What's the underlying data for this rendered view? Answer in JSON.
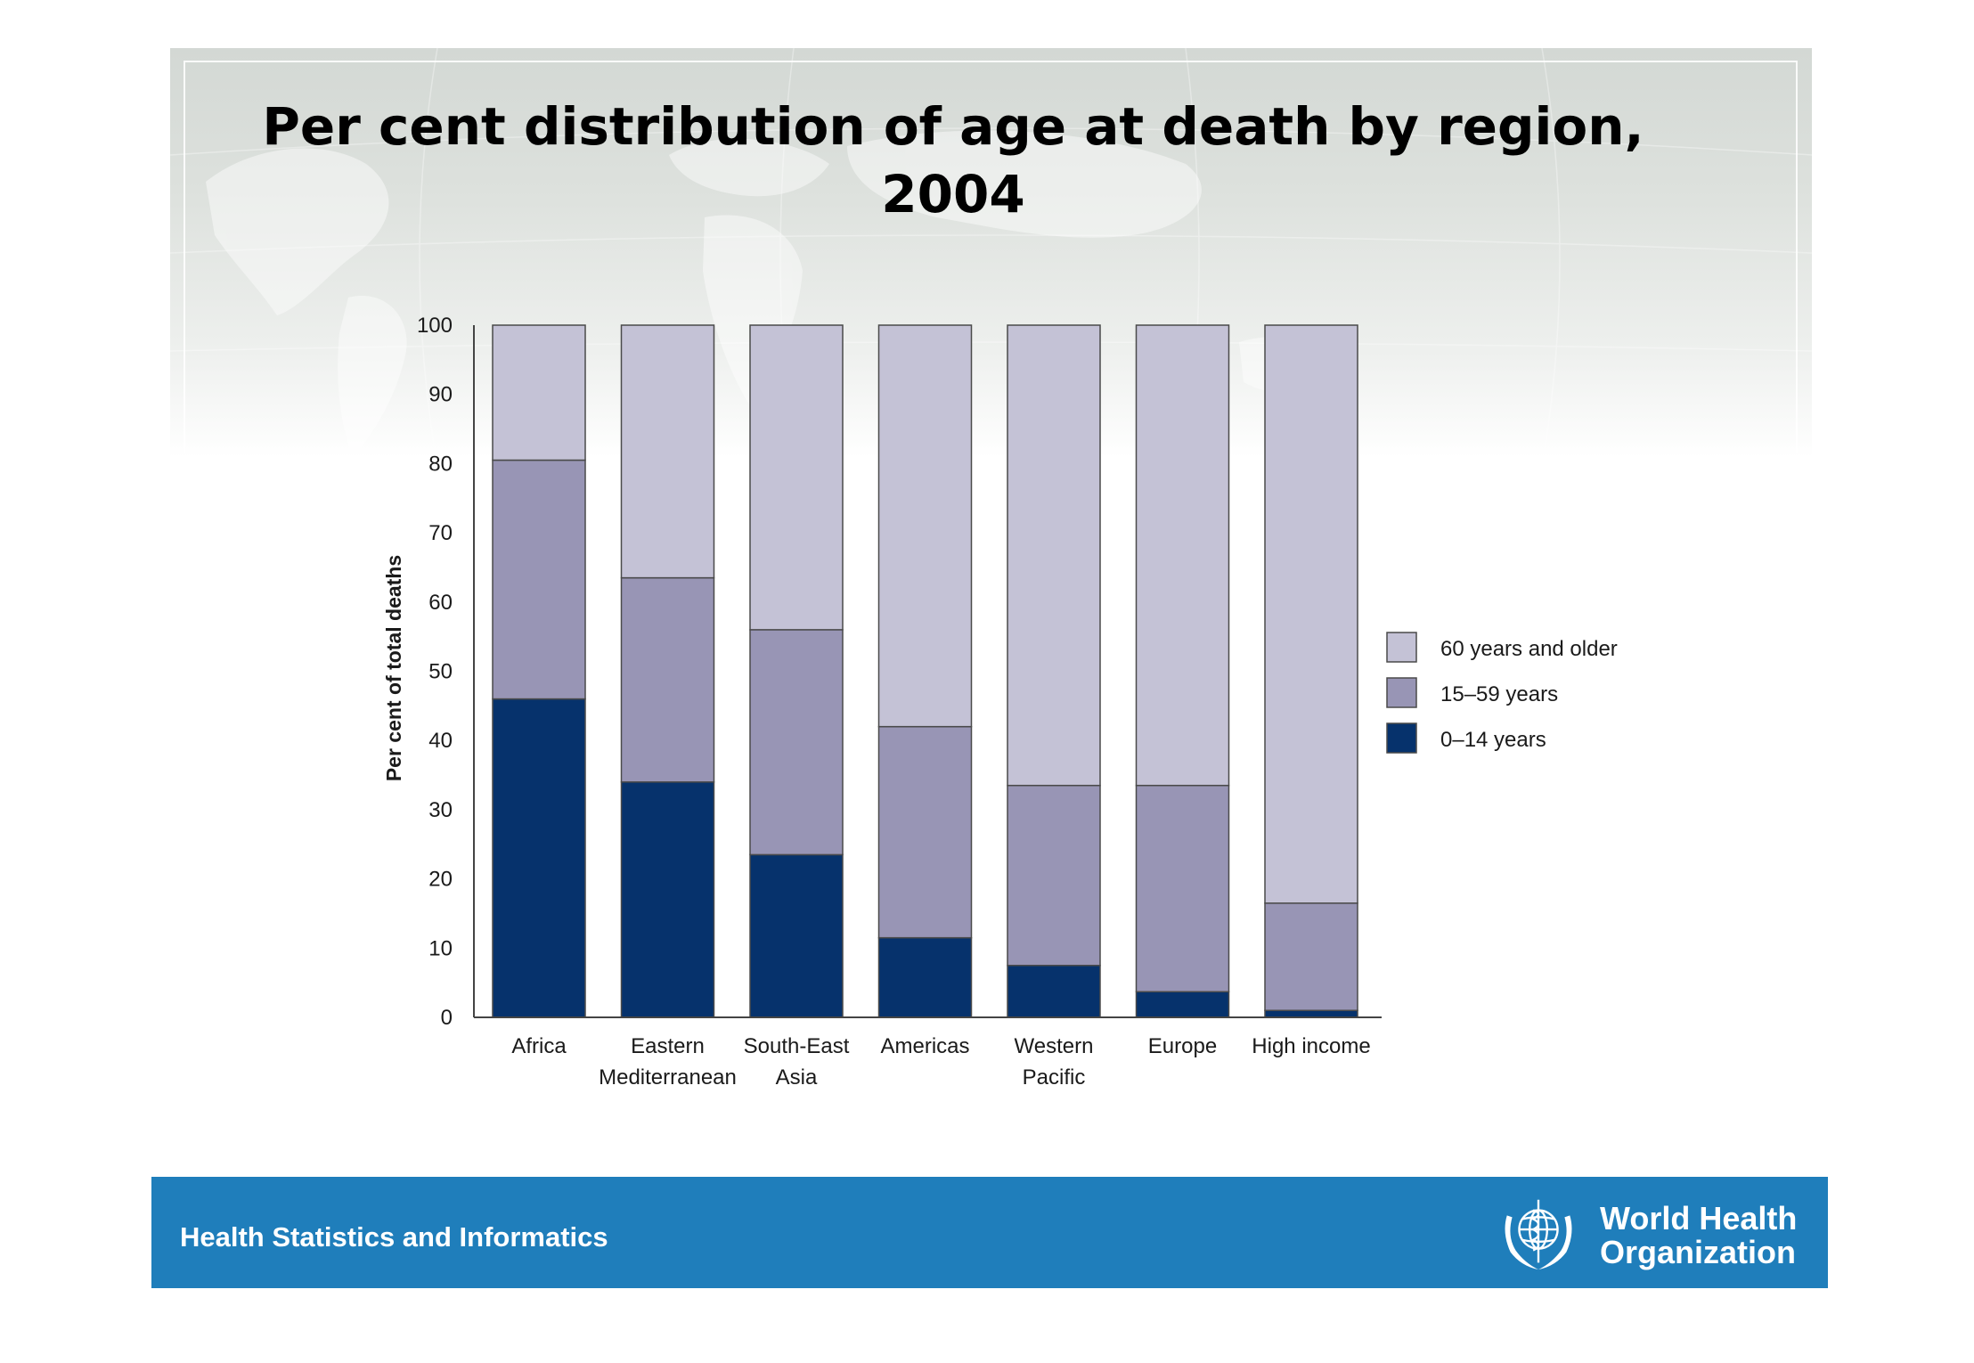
{
  "slide": {
    "title_line1": "Per cent distribution of age at death by region,",
    "title_line2": "2004"
  },
  "footer": {
    "department": "Health Statistics and Informatics",
    "org_line1": "World Health",
    "org_line2": "Organization",
    "logo_icon": "who-emblem-icon"
  },
  "colors": {
    "band": "#1f7ebb",
    "age_60_plus": "#c4c2d6",
    "age_15_59": "#9895b5",
    "age_0_14": "#06326c"
  },
  "chart_data": {
    "type": "bar",
    "stacked": true,
    "ylabel": "Per cent of total deaths",
    "ylim": [
      0,
      100
    ],
    "yticks": [
      "0",
      "10",
      "20",
      "30",
      "40",
      "50",
      "60",
      "70",
      "80",
      "90",
      "100"
    ],
    "categories": [
      [
        "Africa"
      ],
      [
        "Eastern",
        "Mediterranean"
      ],
      [
        "South-East",
        "Asia"
      ],
      [
        "Americas"
      ],
      [
        "Western",
        "Pacific"
      ],
      [
        "Europe"
      ],
      [
        "High income"
      ]
    ],
    "series": [
      {
        "name": "0–14 years",
        "color": "#06326c",
        "values": [
          46,
          34,
          23.5,
          11.5,
          7.5,
          3.7,
          1
        ]
      },
      {
        "name": "15–59 years",
        "color": "#9895b5",
        "values": [
          34.5,
          29.5,
          32.5,
          30.5,
          26,
          29.8,
          15.5
        ]
      },
      {
        "name": "60 years and older",
        "color": "#c4c2d6",
        "values": [
          19.5,
          36.5,
          44,
          58,
          66.5,
          66.5,
          83.5
        ]
      }
    ],
    "legend": {
      "placement": "right",
      "order": [
        "60 years and older",
        "15–59 years",
        "0–14 years"
      ]
    },
    "grid": false
  }
}
